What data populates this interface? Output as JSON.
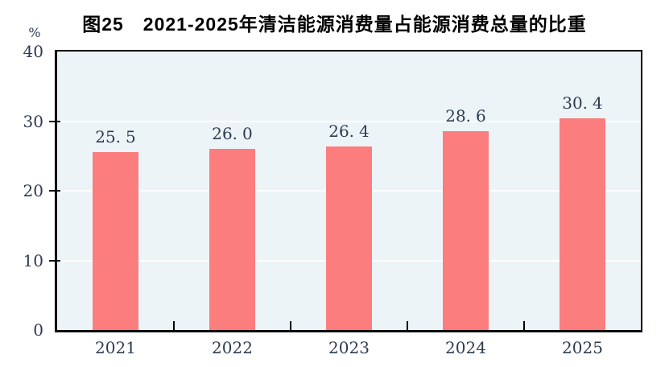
{
  "figure": {
    "title": "图25　2021-2025年清洁能源消费量占能源消费总量的比重",
    "unit_label": "%"
  },
  "chart_data": {
    "type": "bar",
    "title": "图25　2021-2025年清洁能源消费量占能源消费总量的比重",
    "categories": [
      "2021",
      "2022",
      "2023",
      "2024",
      "2025"
    ],
    "values": [
      25.5,
      26.0,
      26.4,
      28.6,
      30.4
    ],
    "xlabel": "",
    "ylabel": "%",
    "ylim": [
      0,
      40
    ],
    "yticks": [
      0,
      10,
      20,
      30,
      40
    ],
    "ytick_labels": [
      "0",
      "10",
      "20",
      "30",
      "40"
    ],
    "gridlines_at": [
      10,
      20,
      30
    ],
    "grid": "horizontal",
    "legend": "none",
    "colors": {
      "bar": "#FB7D7D",
      "plot_background": "#EDF4F8",
      "gridline": "#FFFFFF",
      "axis": "#000000",
      "tick_text": "#2E3C50",
      "title_text": "#000000"
    }
  }
}
